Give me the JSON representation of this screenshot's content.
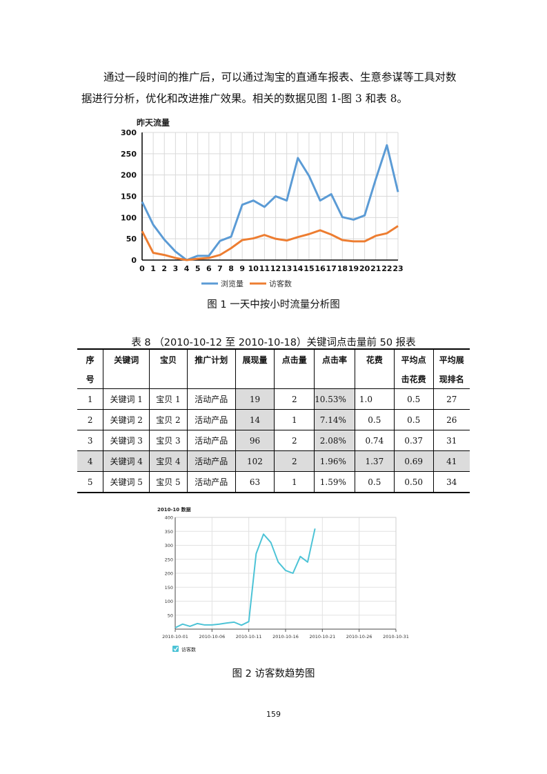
{
  "paragraph": {
    "line1": "通过一段时间的推广后，可以通过淘宝的直通车报表、生意参谋等工具对数",
    "line2": "据进行分析，优化和改进推广效果。相关的数据见图 1-图 3 和表 8。"
  },
  "figure1_caption": "图 1  一天中按小时流量分析图",
  "table_title": "表 8  （2010-10-12 至 2010-10-18）关键词点击量前 50 报表",
  "table": {
    "headers": {
      "index_a": "序",
      "index_b": "号",
      "keyword": "关键词",
      "item": "宝贝",
      "plan": "推广计划",
      "impressions": "展现量",
      "clicks": "点击量",
      "ctr": "点击率",
      "cost": "花费",
      "avg_cpc_a": "平均点",
      "avg_cpc_b": "击花费",
      "avg_rank_a": "平均展",
      "avg_rank_b": "现排名"
    },
    "rows": [
      {
        "index": "1",
        "keyword": "关键词 1",
        "item": "宝贝 1",
        "plan": "活动产品",
        "impressions": "19",
        "clicks": "2",
        "ctr": "10.53%",
        "cost": "1.0",
        "avg_cpc": "0.5",
        "avg_rank": "27"
      },
      {
        "index": "2",
        "keyword": "关键词 2",
        "item": "宝贝 2",
        "plan": "活动产品",
        "impressions": "14",
        "clicks": "1",
        "ctr": "7.14%",
        "cost": "0.5",
        "avg_cpc": "0.5",
        "avg_rank": "26"
      },
      {
        "index": "3",
        "keyword": "关键词 3",
        "item": "宝贝 3",
        "plan": "活动产品",
        "impressions": "96",
        "clicks": "2",
        "ctr": "2.08%",
        "cost": "0.74",
        "avg_cpc": "0.37",
        "avg_rank": "31"
      },
      {
        "index": "4",
        "keyword": "关键词 4",
        "item": "宝贝 4",
        "plan": "活动产品",
        "impressions": "102",
        "clicks": "2",
        "ctr": "1.96%",
        "cost": "1.37",
        "avg_cpc": "0.69",
        "avg_rank": "41"
      },
      {
        "index": "5",
        "keyword": "关键词 5",
        "item": "宝贝 5",
        "plan": "活动产品",
        "impressions": "63",
        "clicks": "1",
        "ctr": "1.59%",
        "cost": "0.5",
        "avg_cpc": "0.50",
        "avg_rank": "34"
      }
    ]
  },
  "figure2_caption": "图 2  访客数趋势图",
  "page_number": "159",
  "colors": {
    "views": "#5b9bd5",
    "visitors": "#ed7d31",
    "trend": "#4cc3d6",
    "grid": "#d9d9d9",
    "shade": "#dcdcdc"
  },
  "chart_data": [
    {
      "type": "line",
      "title": "昨天流量",
      "xlabel": "",
      "ylabel": "",
      "x": [
        0,
        1,
        2,
        3,
        4,
        5,
        6,
        7,
        8,
        9,
        10,
        11,
        12,
        13,
        14,
        15,
        16,
        17,
        18,
        19,
        20,
        21,
        22,
        23
      ],
      "ylim": [
        0,
        300
      ],
      "yticks": [
        0,
        50,
        100,
        150,
        200,
        250,
        300
      ],
      "series": [
        {
          "name": "浏览量",
          "color": "#5b9bd5",
          "values": [
            137,
            83,
            48,
            20,
            0,
            10,
            10,
            45,
            55,
            130,
            140,
            125,
            150,
            140,
            240,
            198,
            140,
            155,
            101,
            95,
            105,
            190,
            270,
            160
          ]
        },
        {
          "name": "访客数",
          "color": "#ed7d31",
          "values": [
            68,
            17,
            12,
            5,
            0,
            3,
            5,
            12,
            28,
            47,
            51,
            59,
            50,
            46,
            54,
            61,
            70,
            60,
            47,
            44,
            44,
            57,
            63,
            80
          ]
        }
      ],
      "grid": true,
      "legend": "bottom"
    },
    {
      "type": "line",
      "title": "2010-10 数据",
      "xlabel": "",
      "ylabel": "",
      "x": [
        "2010-10-01",
        "2010-10-02",
        "2010-10-03",
        "2010-10-04",
        "2010-10-05",
        "2010-10-06",
        "2010-10-07",
        "2010-10-08",
        "2010-10-09",
        "2010-10-10",
        "2010-10-11",
        "2010-10-12",
        "2010-10-13",
        "2010-10-14",
        "2010-10-15",
        "2010-10-16",
        "2010-10-17",
        "2010-10-18",
        "2010-10-19",
        "2010-10-20"
      ],
      "xticks": [
        "2010-10-01",
        "2010-10-06",
        "2010-10-11",
        "2010-10-16",
        "2010-10-21",
        "2010-10-26",
        "2010-10-31"
      ],
      "ylim": [
        0,
        400
      ],
      "yticks": [
        50,
        100,
        150,
        200,
        250,
        300,
        350,
        400
      ],
      "series": [
        {
          "name": "访客数",
          "color": "#4cc3d6",
          "values": [
            5,
            18,
            10,
            20,
            15,
            15,
            18,
            22,
            25,
            14,
            27,
            270,
            340,
            310,
            240,
            210,
            200,
            260,
            240,
            360
          ]
        }
      ],
      "grid": true,
      "legend": "bottom-left"
    }
  ]
}
